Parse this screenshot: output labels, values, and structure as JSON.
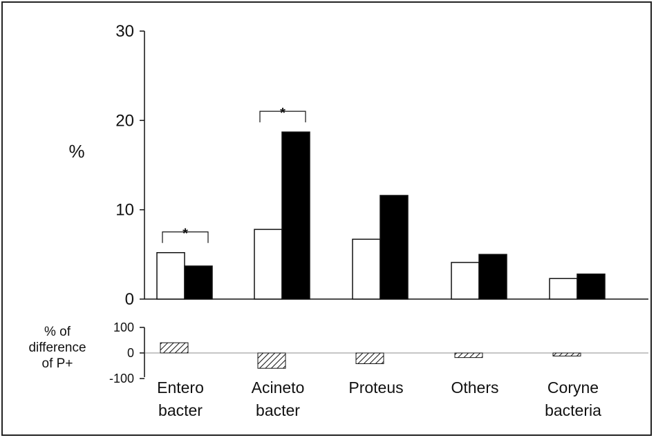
{
  "chart_data": {
    "type": "bar",
    "categories": [
      [
        "Entero",
        "bacter"
      ],
      [
        "Acineto",
        "bacter"
      ],
      [
        "Proteus"
      ],
      [
        "Others"
      ],
      [
        "Coryne",
        "bacteria"
      ]
    ],
    "top_panel": {
      "ylabel": "%",
      "ylim": [
        0,
        30
      ],
      "yticks": [
        "0",
        "10",
        "20",
        "30"
      ],
      "series": [
        {
          "style": "open",
          "values": [
            5.2,
            7.8,
            6.7,
            4.1,
            2.3
          ]
        },
        {
          "style": "filled",
          "values": [
            3.7,
            18.7,
            11.6,
            5.0,
            2.8
          ]
        }
      ],
      "significance": [
        {
          "category_index": 0,
          "label": "*"
        },
        {
          "category_index": 1,
          "label": "*"
        }
      ]
    },
    "bottom_panel": {
      "ylabel": [
        "% of",
        "difference",
        "of P+"
      ],
      "ylim": [
        -100,
        100
      ],
      "yticks": [
        "100",
        "0",
        "-100"
      ],
      "values": [
        40,
        -60,
        -42,
        -18,
        -12
      ],
      "fill": "hatched"
    },
    "grid": false,
    "legend": "none"
  },
  "colors": {
    "bar_filled": "#000000",
    "bar_open": "#ffffff",
    "axis": "#111111"
  }
}
